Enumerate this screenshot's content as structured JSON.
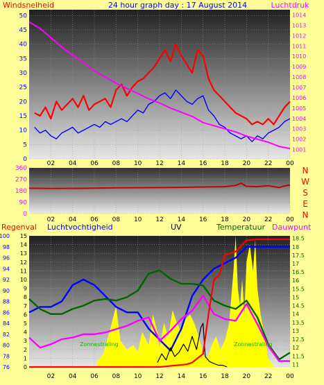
{
  "header": {
    "left_label": "Windsnelheid",
    "title": "24 hour graph day : 17 August 2014",
    "right_label": "Luchtdruk"
  },
  "labels_mid": {
    "compass": [
      "N",
      "W",
      "S",
      "E",
      "N"
    ]
  },
  "labels_bottom": {
    "regenval": "Regenval",
    "luchtvochtigheid": "Luchtvochtigheid",
    "uv": "UV",
    "temperatuur": "Temperatuur",
    "dauwpunt": "Dauwpunt",
    "zonnestraling_left": "Zonnestraling",
    "zonnestraling_right": "Zonnestraling"
  },
  "colors": {
    "background": "#ffff99",
    "wind_gust": "#ff0000",
    "wind_avg": "#0000ff",
    "pressure": "#ff00ff",
    "direction": "#cc0000",
    "humidity": "#0000ff",
    "uv": "#000000",
    "temperature": "#006400",
    "dewpoint": "#ff00ff",
    "rain": "#ff0000",
    "solar": "#ffff00",
    "left_axis_text": "#0000ff",
    "right_axis_text": "#ff00ff",
    "temp_axis_text": "#006400",
    "regen_text": "#ff0000",
    "title_text": "#0000ff",
    "left_label_text": "#ff0000"
  },
  "chart_data": [
    {
      "id": "wind_pressure",
      "type": "line",
      "x_ticks": [
        "02",
        "04",
        "06",
        "08",
        "10",
        "12",
        "14",
        "16",
        "18",
        "20",
        "22",
        "00"
      ],
      "y_left": {
        "ticks": [
          0,
          5,
          10,
          15,
          20,
          25,
          30,
          35,
          40,
          45,
          50
        ],
        "lim": [
          0,
          52
        ]
      },
      "y_right": {
        "ticks": [
          1001,
          1002,
          1003,
          1004,
          1005,
          1006,
          1007,
          1008,
          1009,
          1010,
          1011,
          1012,
          1013,
          1014
        ],
        "lim": [
          1000.1,
          1014.5
        ]
      },
      "series": [
        {
          "key": "gust",
          "axis": "left",
          "x": [
            0.5,
            1,
            1.5,
            2,
            2.5,
            3,
            3.5,
            4,
            4.5,
            5,
            5.5,
            6,
            6.5,
            7,
            7.5,
            8,
            8.5,
            9,
            9.5,
            10,
            10.5,
            11,
            11.5,
            12,
            12.5,
            13,
            13.5,
            14,
            14.5,
            15,
            15.5,
            16,
            16.5,
            17,
            17.5,
            18,
            18.5,
            19,
            19.5,
            20,
            20.5,
            21,
            21.5,
            22,
            22.5,
            23,
            23.5,
            24
          ],
          "y": [
            16,
            15,
            18,
            14,
            20,
            17,
            19,
            21,
            18,
            22,
            17,
            19,
            20,
            21,
            18,
            24,
            26,
            22,
            25,
            27,
            28,
            30,
            32,
            35,
            38,
            34,
            40,
            36,
            33,
            30,
            38,
            36,
            28,
            24,
            22,
            20,
            18,
            16,
            15,
            14,
            12,
            13,
            12,
            14,
            12,
            15,
            18,
            20
          ]
        },
        {
          "key": "average",
          "axis": "left",
          "x": [
            0.5,
            1,
            1.5,
            2,
            2.5,
            3,
            3.5,
            4,
            4.5,
            5,
            5.5,
            6,
            6.5,
            7,
            7.5,
            8,
            8.5,
            9,
            9.5,
            10,
            10.5,
            11,
            11.5,
            12,
            12.5,
            13,
            13.5,
            14,
            14.5,
            15,
            15.5,
            16,
            16.5,
            17,
            17.5,
            18,
            18.5,
            19,
            19.5,
            20,
            20.5,
            21,
            21.5,
            22,
            22.5,
            23,
            23.5,
            24
          ],
          "y": [
            11,
            9,
            10,
            8,
            7,
            9,
            10,
            11,
            9,
            10,
            11,
            12,
            11,
            13,
            12,
            13,
            14,
            13,
            15,
            17,
            16,
            19,
            20,
            22,
            23,
            21,
            24,
            22,
            20,
            19,
            21,
            22,
            17,
            15,
            12,
            11,
            9,
            8,
            7,
            8,
            6,
            8,
            7,
            9,
            10,
            11,
            13,
            14
          ]
        },
        {
          "key": "pressure",
          "axis": "right",
          "x": [
            0,
            1,
            2,
            3,
            4,
            5,
            6,
            7,
            8,
            9,
            10,
            11,
            12,
            13,
            14,
            15,
            16,
            17,
            18,
            19,
            20,
            21,
            22,
            23,
            24
          ],
          "y": [
            1013.3,
            1012.7,
            1011.8,
            1010.9,
            1010.1,
            1009.4,
            1008.6,
            1008.0,
            1007.4,
            1006.9,
            1006.4,
            1005.9,
            1005.5,
            1005.0,
            1004.6,
            1004.2,
            1003.6,
            1003.3,
            1003.0,
            1002.7,
            1002.3,
            1002.0,
            1001.7,
            1001.3,
            1001.1
          ]
        }
      ]
    },
    {
      "id": "wind_direction",
      "type": "line",
      "x_ticks": [
        "02",
        "04",
        "06",
        "08",
        "10",
        "12",
        "14",
        "16",
        "18",
        "20",
        "22",
        "00"
      ],
      "y_left": {
        "ticks": [
          0,
          90,
          180,
          270,
          360
        ],
        "lim": [
          0,
          360
        ]
      },
      "series": [
        {
          "key": "direction",
          "x": [
            0,
            2,
            4,
            6,
            8,
            10,
            12,
            14,
            16,
            18,
            19,
            19.5,
            20,
            21,
            22,
            23,
            23.5,
            24
          ],
          "y": [
            200,
            198,
            199,
            200,
            203,
            204,
            205,
            207,
            210,
            212,
            222,
            240,
            215,
            212,
            220,
            205,
            218,
            225
          ]
        }
      ]
    },
    {
      "id": "climate",
      "type": "line",
      "x_ticks": [
        "02",
        "04",
        "06",
        "08",
        "10",
        "12",
        "14",
        "16",
        "18",
        "20",
        "22",
        "00"
      ],
      "y_humidity": {
        "ticks": [
          76,
          78,
          80,
          82,
          84,
          86,
          88,
          90,
          92,
          94,
          96,
          98,
          100
        ],
        "lim": [
          76,
          100
        ]
      },
      "y_uv": {
        "ticks": [
          0,
          1,
          2,
          3,
          4,
          5,
          6,
          7,
          8,
          9,
          10,
          11,
          12,
          13,
          14,
          15
        ],
        "lim": [
          0,
          15
        ]
      },
      "y_temperature": {
        "ticks": [
          11,
          11.5,
          12,
          12.5,
          13,
          13.5,
          14,
          14.5,
          15,
          15.5,
          16,
          16.5,
          17,
          17.5,
          18,
          18.5
        ],
        "lim": [
          10.85,
          18.65
        ]
      },
      "series": [
        {
          "key": "humidity",
          "x": [
            0,
            1,
            2,
            3,
            4,
            5,
            6,
            7,
            8,
            9,
            10,
            11,
            12,
            13,
            14,
            15,
            16,
            17,
            18,
            19,
            20,
            21,
            22,
            23,
            24
          ],
          "y": [
            86,
            87,
            87,
            88,
            91,
            92,
            91,
            89,
            87,
            86,
            86,
            83,
            81,
            79,
            83,
            89,
            92,
            94,
            95,
            96,
            98,
            98,
            98,
            98,
            98
          ]
        },
        {
          "key": "temperature",
          "x": [
            0,
            1,
            2,
            3,
            4,
            5,
            6,
            7,
            8,
            9,
            10,
            11,
            12,
            13,
            14,
            15,
            16,
            17,
            18,
            19,
            20,
            21,
            22,
            23,
            24
          ],
          "y": [
            14.9,
            14.3,
            14.0,
            14.0,
            14.3,
            14.5,
            14.8,
            14.9,
            14.8,
            15.0,
            15.4,
            16.4,
            16.6,
            16.1,
            15.8,
            15.8,
            15.7,
            14.8,
            14.5,
            14.3,
            14.8,
            13.8,
            12.2,
            11.3,
            11.7
          ]
        },
        {
          "key": "dewpoint",
          "x": [
            0,
            1,
            2,
            3,
            4,
            5,
            6,
            7,
            8,
            9,
            10,
            11,
            12,
            13,
            14,
            15,
            16,
            17,
            18,
            19,
            20,
            21,
            22,
            23,
            24
          ],
          "y": [
            12.6,
            12.0,
            12.2,
            12.5,
            12.6,
            12.8,
            12.8,
            12.9,
            13.1,
            13.3,
            13.6,
            13.8,
            12.4,
            13.0,
            13.7,
            14.2,
            15.1,
            14.0,
            13.7,
            13.6,
            14.6,
            13.4,
            12.1,
            11.2,
            11.2
          ]
        },
        {
          "key": "uv",
          "x": [
            11.8,
            12.2,
            12.6,
            13,
            13.4,
            13.8,
            14.2,
            14.6,
            15,
            15.4,
            15.8,
            16.0,
            16.2,
            16.6,
            17.0,
            17.4,
            17.8,
            18.2
          ],
          "y": [
            0.5,
            1.5,
            0.8,
            2.2,
            1.2,
            1.7,
            2.6,
            1.8,
            3.5,
            2.0,
            4.5,
            5.0,
            1.2,
            0.6,
            0.4,
            0.2,
            0.2,
            0
          ]
        },
        {
          "key": "rain",
          "x": [
            0,
            4,
            8,
            12,
            14.5,
            15,
            15.5,
            16,
            16.5,
            17,
            17.5,
            18,
            19,
            20,
            21,
            22,
            23,
            23.8,
            24
          ],
          "y": [
            0,
            0,
            0,
            0,
            0.3,
            0.5,
            1.0,
            1.5,
            6.0,
            10.0,
            10.5,
            12.8,
            13.2,
            14.5,
            14.6,
            14.6,
            14.6,
            14.6,
            14.6
          ]
        },
        {
          "key": "solar",
          "x": [
            6.2,
            6.8,
            7.5,
            8.0,
            8.4,
            9,
            9.6,
            10,
            10.4,
            11,
            11.4,
            11.8,
            12,
            12.4,
            12.8,
            13.2,
            13.6,
            14,
            14.4,
            14.8,
            15.2,
            15.6,
            16,
            16.4,
            16.8,
            17.2,
            17.6,
            18,
            18.4,
            18.6,
            18.8,
            19.0,
            19.2,
            19.4,
            19.6,
            19.8,
            20.0,
            20.3,
            20.6,
            20.8,
            21.0,
            21.3,
            21.6,
            22.0,
            22.5
          ],
          "y": [
            0.5,
            1.5,
            4.5,
            7.0,
            3.0,
            2.0,
            2.5,
            1.8,
            4.0,
            2.5,
            6.0,
            4.0,
            2.2,
            5.0,
            3.5,
            6.5,
            5.0,
            4.0,
            5.5,
            6.0,
            5.0,
            3.5,
            1.5,
            1.0,
            2.5,
            3.5,
            2.0,
            3.0,
            5.0,
            8.0,
            11.0,
            15.0,
            9.0,
            7.0,
            10.0,
            6.0,
            12.0,
            14.0,
            11.0,
            14.5,
            9.0,
            6.0,
            4.0,
            1.0,
            0
          ]
        }
      ]
    }
  ]
}
